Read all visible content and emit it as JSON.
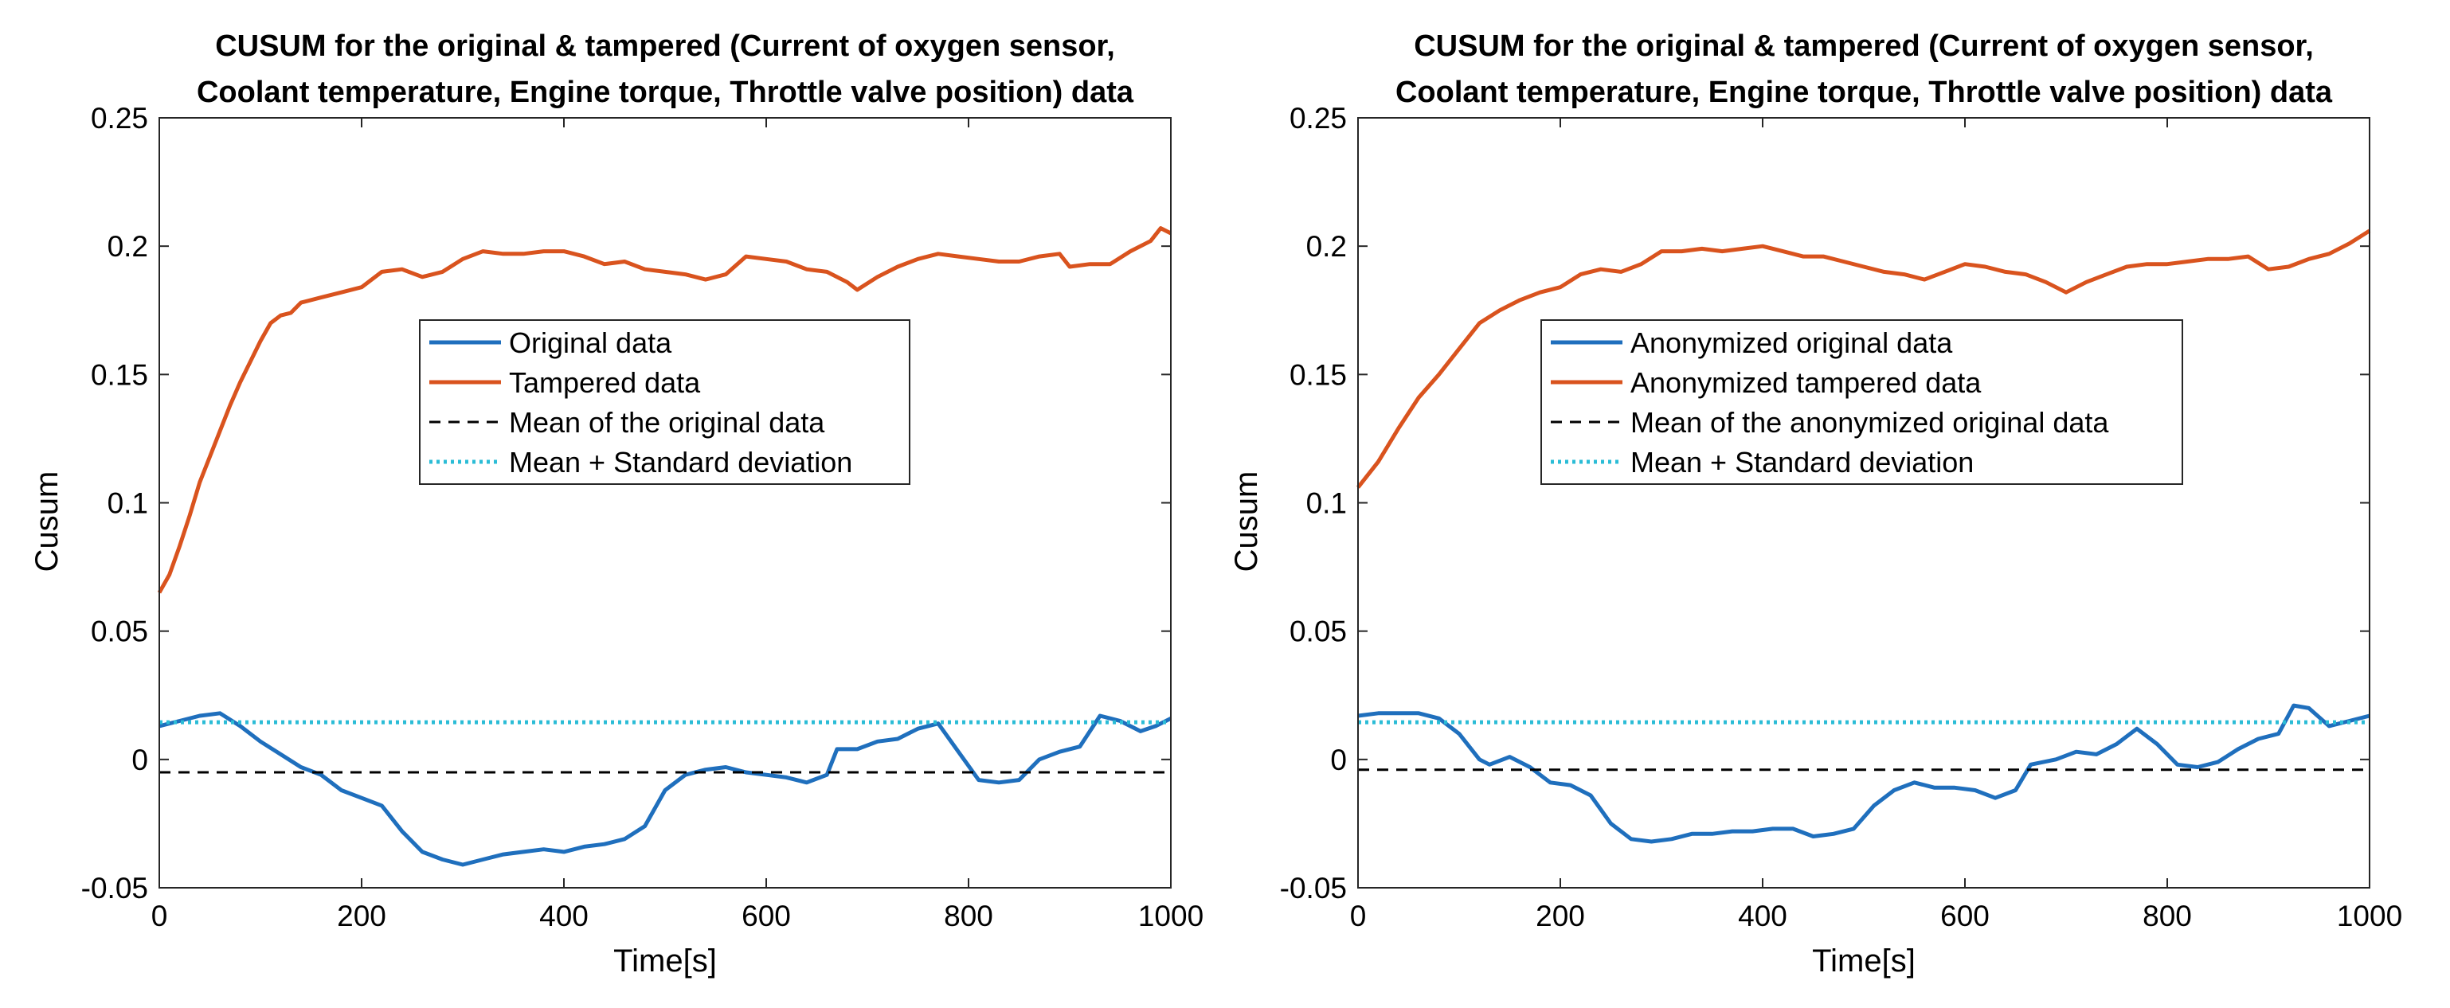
{
  "colors": {
    "original": "#1f6fbd",
    "tampered": "#d9531e",
    "mean": "#000000",
    "mean_std": "#2bbcd6"
  },
  "chart_data": [
    {
      "type": "line",
      "title_line1": "CUSUM for the original & tampered (Current  of  oxygen  sensor,",
      "title_line2": "Coolant  temperature, Engine torque, Throttle valve position) data",
      "xlabel": "Time[s]",
      "ylabel": "Cusum",
      "xlim": [
        0,
        1000
      ],
      "ylim": [
        -0.05,
        0.25
      ],
      "xticks": [
        0,
        200,
        400,
        600,
        800,
        1000
      ],
      "xtick_labels": [
        "0",
        "200",
        "400",
        "600",
        "800",
        "1000"
      ],
      "yticks": [
        -0.05,
        0,
        0.05,
        0.1,
        0.15,
        0.2,
        0.25
      ],
      "ytick_labels": [
        "-0.05",
        "0",
        "0.05",
        "0.1",
        "0.15",
        "0.2",
        "0.25"
      ],
      "grid": false,
      "legend_position": "center",
      "legend": [
        "Original data",
        "Tampered data",
        "Mean of the original data",
        "Mean + Standard deviation"
      ],
      "series": [
        {
          "name": "Original data",
          "color_key": "original",
          "style": "solid",
          "points": [
            [
              0,
              0.013
            ],
            [
              20,
              0.015
            ],
            [
              40,
              0.017
            ],
            [
              60,
              0.018
            ],
            [
              80,
              0.013
            ],
            [
              100,
              0.007
            ],
            [
              120,
              0.002
            ],
            [
              140,
              -0.003
            ],
            [
              160,
              -0.006
            ],
            [
              180,
              -0.012
            ],
            [
              200,
              -0.015
            ],
            [
              220,
              -0.018
            ],
            [
              240,
              -0.028
            ],
            [
              260,
              -0.036
            ],
            [
              280,
              -0.039
            ],
            [
              300,
              -0.041
            ],
            [
              320,
              -0.039
            ],
            [
              340,
              -0.037
            ],
            [
              360,
              -0.036
            ],
            [
              380,
              -0.035
            ],
            [
              400,
              -0.036
            ],
            [
              420,
              -0.034
            ],
            [
              440,
              -0.033
            ],
            [
              460,
              -0.031
            ],
            [
              480,
              -0.026
            ],
            [
              500,
              -0.012
            ],
            [
              520,
              -0.006
            ],
            [
              540,
              -0.004
            ],
            [
              560,
              -0.003
            ],
            [
              580,
              -0.005
            ],
            [
              600,
              -0.006
            ],
            [
              620,
              -0.007
            ],
            [
              640,
              -0.009
            ],
            [
              660,
              -0.006
            ],
            [
              670,
              0.004
            ],
            [
              690,
              0.004
            ],
            [
              710,
              0.007
            ],
            [
              730,
              0.008
            ],
            [
              750,
              0.012
            ],
            [
              770,
              0.014
            ],
            [
              790,
              0.003
            ],
            [
              810,
              -0.008
            ],
            [
              830,
              -0.009
            ],
            [
              850,
              -0.008
            ],
            [
              870,
              0.0
            ],
            [
              890,
              0.003
            ],
            [
              910,
              0.005
            ],
            [
              930,
              0.017
            ],
            [
              950,
              0.015
            ],
            [
              970,
              0.011
            ],
            [
              985,
              0.013
            ],
            [
              1000,
              0.016
            ]
          ]
        },
        {
          "name": "Tampered data",
          "color_key": "tampered",
          "style": "solid",
          "points": [
            [
              0,
              0.065
            ],
            [
              10,
              0.072
            ],
            [
              20,
              0.083
            ],
            [
              30,
              0.095
            ],
            [
              40,
              0.108
            ],
            [
              50,
              0.118
            ],
            [
              60,
              0.128
            ],
            [
              70,
              0.138
            ],
            [
              80,
              0.147
            ],
            [
              90,
              0.155
            ],
            [
              100,
              0.163
            ],
            [
              110,
              0.17
            ],
            [
              120,
              0.173
            ],
            [
              130,
              0.174
            ],
            [
              140,
              0.178
            ],
            [
              160,
              0.18
            ],
            [
              180,
              0.182
            ],
            [
              200,
              0.184
            ],
            [
              220,
              0.19
            ],
            [
              240,
              0.191
            ],
            [
              260,
              0.188
            ],
            [
              280,
              0.19
            ],
            [
              300,
              0.195
            ],
            [
              320,
              0.198
            ],
            [
              340,
              0.197
            ],
            [
              360,
              0.197
            ],
            [
              380,
              0.198
            ],
            [
              400,
              0.198
            ],
            [
              420,
              0.196
            ],
            [
              440,
              0.193
            ],
            [
              460,
              0.194
            ],
            [
              480,
              0.191
            ],
            [
              500,
              0.19
            ],
            [
              520,
              0.189
            ],
            [
              540,
              0.187
            ],
            [
              560,
              0.189
            ],
            [
              580,
              0.196
            ],
            [
              600,
              0.195
            ],
            [
              620,
              0.194
            ],
            [
              640,
              0.191
            ],
            [
              660,
              0.19
            ],
            [
              680,
              0.186
            ],
            [
              690,
              0.183
            ],
            [
              710,
              0.188
            ],
            [
              730,
              0.192
            ],
            [
              750,
              0.195
            ],
            [
              770,
              0.197
            ],
            [
              790,
              0.196
            ],
            [
              810,
              0.195
            ],
            [
              830,
              0.194
            ],
            [
              850,
              0.194
            ],
            [
              870,
              0.196
            ],
            [
              890,
              0.197
            ],
            [
              900,
              0.192
            ],
            [
              920,
              0.193
            ],
            [
              940,
              0.193
            ],
            [
              960,
              0.198
            ],
            [
              980,
              0.202
            ],
            [
              990,
              0.207
            ],
            [
              1000,
              0.205
            ]
          ]
        },
        {
          "name": "Mean of the original data",
          "color_key": "mean",
          "style": "dashed",
          "points": [
            [
              0,
              -0.005
            ],
            [
              1000,
              -0.005
            ]
          ]
        },
        {
          "name": "Mean + Standard deviation",
          "color_key": "mean_std",
          "style": "dotted",
          "points": [
            [
              0,
              0.0145
            ],
            [
              1000,
              0.0145
            ]
          ]
        }
      ]
    },
    {
      "type": "line",
      "title_line1": "CUSUM for the original & tampered (Current  of  oxygen  sensor,",
      "title_line2": "Coolant  temperature, Engine torque, Throttle valve position) data",
      "xlabel": "Time[s]",
      "ylabel": "Cusum",
      "xlim": [
        0,
        1000
      ],
      "ylim": [
        -0.05,
        0.25
      ],
      "xticks": [
        0,
        200,
        400,
        600,
        800,
        1000
      ],
      "xtick_labels": [
        "0",
        "200",
        "400",
        "600",
        "800",
        "1000"
      ],
      "yticks": [
        -0.05,
        0,
        0.05,
        0.1,
        0.15,
        0.2,
        0.25
      ],
      "ytick_labels": [
        "-0.05",
        "0",
        "0.05",
        "0.1",
        "0.15",
        "0.2",
        "0.25"
      ],
      "grid": false,
      "legend_position": "center",
      "legend": [
        "Anonymized original data",
        "Anonymized tampered data",
        "Mean of the anonymized original data",
        "Mean + Standard deviation"
      ],
      "series": [
        {
          "name": "Anonymized original data",
          "color_key": "original",
          "style": "solid",
          "points": [
            [
              0,
              0.017
            ],
            [
              20,
              0.018
            ],
            [
              40,
              0.018
            ],
            [
              60,
              0.018
            ],
            [
              80,
              0.016
            ],
            [
              100,
              0.01
            ],
            [
              120,
              0.0
            ],
            [
              130,
              -0.002
            ],
            [
              150,
              0.001
            ],
            [
              170,
              -0.003
            ],
            [
              190,
              -0.009
            ],
            [
              210,
              -0.01
            ],
            [
              230,
              -0.014
            ],
            [
              250,
              -0.025
            ],
            [
              270,
              -0.031
            ],
            [
              290,
              -0.032
            ],
            [
              310,
              -0.031
            ],
            [
              330,
              -0.029
            ],
            [
              350,
              -0.029
            ],
            [
              370,
              -0.028
            ],
            [
              390,
              -0.028
            ],
            [
              410,
              -0.027
            ],
            [
              430,
              -0.027
            ],
            [
              450,
              -0.03
            ],
            [
              470,
              -0.029
            ],
            [
              490,
              -0.027
            ],
            [
              510,
              -0.018
            ],
            [
              530,
              -0.012
            ],
            [
              550,
              -0.009
            ],
            [
              570,
              -0.011
            ],
            [
              590,
              -0.011
            ],
            [
              610,
              -0.012
            ],
            [
              630,
              -0.015
            ],
            [
              650,
              -0.012
            ],
            [
              665,
              -0.002
            ],
            [
              690,
              0.0
            ],
            [
              710,
              0.003
            ],
            [
              730,
              0.002
            ],
            [
              750,
              0.006
            ],
            [
              770,
              0.012
            ],
            [
              790,
              0.006
            ],
            [
              810,
              -0.002
            ],
            [
              830,
              -0.003
            ],
            [
              850,
              -0.001
            ],
            [
              870,
              0.004
            ],
            [
              890,
              0.008
            ],
            [
              910,
              0.01
            ],
            [
              925,
              0.021
            ],
            [
              940,
              0.02
            ],
            [
              960,
              0.013
            ],
            [
              980,
              0.015
            ],
            [
              1000,
              0.017
            ]
          ]
        },
        {
          "name": "Anonymized tampered data",
          "color_key": "tampered",
          "style": "solid",
          "points": [
            [
              0,
              0.106
            ],
            [
              20,
              0.116
            ],
            [
              40,
              0.129
            ],
            [
              60,
              0.141
            ],
            [
              80,
              0.15
            ],
            [
              100,
              0.16
            ],
            [
              120,
              0.17
            ],
            [
              140,
              0.175
            ],
            [
              160,
              0.179
            ],
            [
              180,
              0.182
            ],
            [
              200,
              0.184
            ],
            [
              220,
              0.189
            ],
            [
              240,
              0.191
            ],
            [
              260,
              0.19
            ],
            [
              280,
              0.193
            ],
            [
              300,
              0.198
            ],
            [
              320,
              0.198
            ],
            [
              340,
              0.199
            ],
            [
              360,
              0.198
            ],
            [
              380,
              0.199
            ],
            [
              400,
              0.2
            ],
            [
              420,
              0.198
            ],
            [
              440,
              0.196
            ],
            [
              460,
              0.196
            ],
            [
              480,
              0.194
            ],
            [
              500,
              0.192
            ],
            [
              520,
              0.19
            ],
            [
              540,
              0.189
            ],
            [
              560,
              0.187
            ],
            [
              580,
              0.19
            ],
            [
              600,
              0.193
            ],
            [
              620,
              0.192
            ],
            [
              640,
              0.19
            ],
            [
              660,
              0.189
            ],
            [
              680,
              0.186
            ],
            [
              700,
              0.182
            ],
            [
              720,
              0.186
            ],
            [
              740,
              0.189
            ],
            [
              760,
              0.192
            ],
            [
              780,
              0.193
            ],
            [
              800,
              0.193
            ],
            [
              820,
              0.194
            ],
            [
              840,
              0.195
            ],
            [
              860,
              0.195
            ],
            [
              880,
              0.196
            ],
            [
              900,
              0.191
            ],
            [
              920,
              0.192
            ],
            [
              940,
              0.195
            ],
            [
              960,
              0.197
            ],
            [
              980,
              0.201
            ],
            [
              1000,
              0.206
            ]
          ]
        },
        {
          "name": "Mean of the anonymized original data",
          "color_key": "mean",
          "style": "dashed",
          "points": [
            [
              0,
              -0.004
            ],
            [
              1000,
              -0.004
            ]
          ]
        },
        {
          "name": "Mean + Standard deviation",
          "color_key": "mean_std",
          "style": "dotted",
          "points": [
            [
              0,
              0.0145
            ],
            [
              1000,
              0.0145
            ]
          ]
        }
      ]
    }
  ]
}
